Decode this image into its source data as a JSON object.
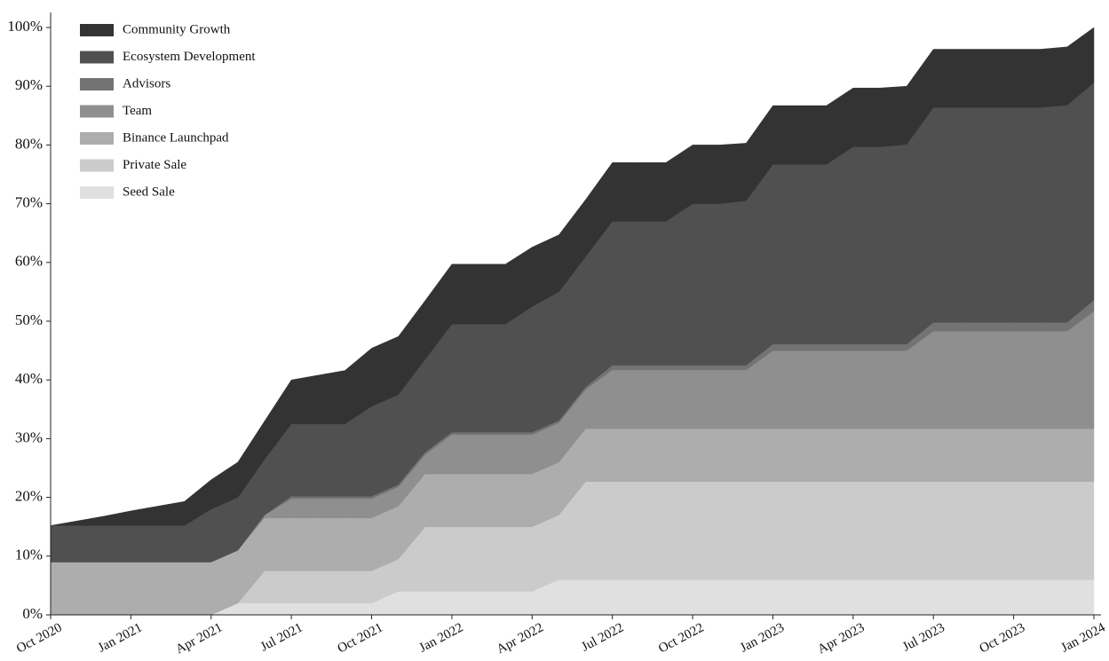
{
  "chart_data": {
    "type": "stacked_area",
    "x": [
      "2020-10",
      "2020-11",
      "2020-12",
      "2021-01",
      "2021-02",
      "2021-03",
      "2021-04",
      "2021-05",
      "2021-06",
      "2021-07",
      "2021-08",
      "2021-09",
      "2021-10",
      "2021-11",
      "2021-12",
      "2022-01",
      "2022-02",
      "2022-03",
      "2022-04",
      "2022-05",
      "2022-06",
      "2022-07",
      "2022-08",
      "2022-09",
      "2022-10",
      "2022-11",
      "2022-12",
      "2023-01",
      "2023-02",
      "2023-03",
      "2023-04",
      "2023-05",
      "2023-06",
      "2023-07",
      "2023-08",
      "2023-09",
      "2023-10",
      "2023-11",
      "2023-12",
      "2024-01"
    ],
    "series": [
      {
        "name": "Seed Sale",
        "color": "#e0e0e0",
        "values": [
          0,
          0,
          0,
          0,
          0,
          0,
          0,
          2,
          2,
          2,
          2,
          2,
          2,
          4,
          4,
          4,
          4,
          4,
          4,
          6,
          6,
          6,
          6,
          6,
          6,
          6,
          6,
          6,
          6,
          6,
          6,
          6,
          6,
          6,
          6,
          6,
          6,
          6,
          6,
          6
        ]
      },
      {
        "name": "Private Sale",
        "color": "#cbcbcb",
        "values": [
          0,
          0,
          0,
          0,
          0,
          0,
          0,
          0,
          5.5,
          5.5,
          5.5,
          5.5,
          5.5,
          5.5,
          11,
          11,
          11,
          11,
          11,
          11,
          16.7,
          16.7,
          16.7,
          16.7,
          16.7,
          16.7,
          16.7,
          16.7,
          16.7,
          16.7,
          16.7,
          16.7,
          16.7,
          16.7,
          16.7,
          16.7,
          16.7,
          16.7,
          16.7,
          16.7
        ]
      },
      {
        "name": "Binance Launchpad",
        "color": "#adadad",
        "values": [
          9,
          9,
          9,
          9,
          9,
          9,
          9,
          9,
          9,
          9,
          9,
          9,
          9,
          9,
          9,
          9,
          9,
          9,
          9,
          9,
          9,
          9,
          9,
          9,
          9,
          9,
          9,
          9,
          9,
          9,
          9,
          9,
          9,
          9,
          9,
          9,
          9,
          9,
          9,
          9
        ]
      },
      {
        "name": "Team",
        "color": "#8f8f8f",
        "values": [
          0,
          0,
          0,
          0,
          0,
          0,
          0,
          0,
          0.5,
          3.3,
          3.3,
          3.3,
          3.3,
          3.3,
          3.3,
          6.7,
          6.7,
          6.7,
          6.7,
          6.7,
          6.7,
          10,
          10,
          10,
          10,
          10,
          10,
          13.3,
          13.3,
          13.3,
          13.3,
          13.3,
          13.3,
          16.6,
          16.6,
          16.6,
          16.6,
          16.6,
          16.6,
          20
        ]
      },
      {
        "name": "Advisors",
        "color": "#737373",
        "values": [
          0,
          0,
          0,
          0,
          0,
          0,
          0,
          0,
          0,
          0.4,
          0.4,
          0.4,
          0.4,
          0.4,
          0.4,
          0.4,
          0.4,
          0.4,
          0.4,
          0.4,
          0.4,
          0.8,
          0.8,
          0.8,
          0.8,
          0.8,
          0.8,
          1.1,
          1.1,
          1.1,
          1.1,
          1.1,
          1.1,
          1.5,
          1.5,
          1.5,
          1.5,
          1.5,
          1.5,
          1.9
        ]
      },
      {
        "name": "Ecosystem Development",
        "color": "#505050",
        "values": [
          6.2,
          6.2,
          6.2,
          6.2,
          6.2,
          6.2,
          9,
          9,
          9.5,
          12.3,
          12.3,
          12.3,
          15.3,
          15.3,
          15.8,
          18.4,
          18.4,
          18.4,
          21.4,
          21.9,
          22.2,
          24.5,
          24.5,
          24.5,
          27.5,
          27.5,
          28,
          30.6,
          30.6,
          30.6,
          33.6,
          33.6,
          34,
          36.6,
          36.6,
          36.6,
          36.6,
          36.6,
          37,
          37
        ]
      },
      {
        "name": "Community Growth",
        "color": "#333333",
        "values": [
          0,
          0.8,
          1.6,
          2.5,
          3.3,
          4.1,
          5,
          6,
          6.5,
          7.5,
          8.3,
          9.1,
          9.9,
          9.9,
          10,
          10.2,
          10.2,
          10.2,
          10.1,
          9.7,
          9.7,
          10,
          10,
          10,
          10,
          10,
          9.8,
          10,
          10,
          10,
          10,
          10,
          9.9,
          9.9,
          9.9,
          9.9,
          9.9,
          9.9,
          9.9,
          9.4
        ]
      }
    ],
    "xlim": [
      "2020-10",
      "2024-01"
    ],
    "xticks": [
      {
        "value": "2020-10",
        "label": "Oct 2020"
      },
      {
        "value": "2021-01",
        "label": "Jan 2021"
      },
      {
        "value": "2021-04",
        "label": "Apr 2021"
      },
      {
        "value": "2021-07",
        "label": "Jul 2021"
      },
      {
        "value": "2021-10",
        "label": "Oct 2021"
      },
      {
        "value": "2022-01",
        "label": "Jan 2022"
      },
      {
        "value": "2022-04",
        "label": "Apr 2022"
      },
      {
        "value": "2022-07",
        "label": "Jul 2022"
      },
      {
        "value": "2022-10",
        "label": "Oct 2022"
      },
      {
        "value": "2023-01",
        "label": "Jan 2023"
      },
      {
        "value": "2023-04",
        "label": "Apr 2023"
      },
      {
        "value": "2023-07",
        "label": "Jul 2023"
      },
      {
        "value": "2023-10",
        "label": "Oct 2023"
      },
      {
        "value": "2024-01",
        "label": "Jan 2024"
      }
    ],
    "ylim": [
      0,
      100
    ],
    "yticks": [
      {
        "value": 0,
        "label": "0%"
      },
      {
        "value": 10,
        "label": "10%"
      },
      {
        "value": 20,
        "label": "20%"
      },
      {
        "value": 30,
        "label": "30%"
      },
      {
        "value": 40,
        "label": "40%"
      },
      {
        "value": 50,
        "label": "50%"
      },
      {
        "value": 60,
        "label": "60%"
      },
      {
        "value": 70,
        "label": "70%"
      },
      {
        "value": 80,
        "label": "80%"
      },
      {
        "value": 90,
        "label": "90%"
      },
      {
        "value": 100,
        "label": "100%"
      }
    ],
    "legend": "upper left"
  }
}
